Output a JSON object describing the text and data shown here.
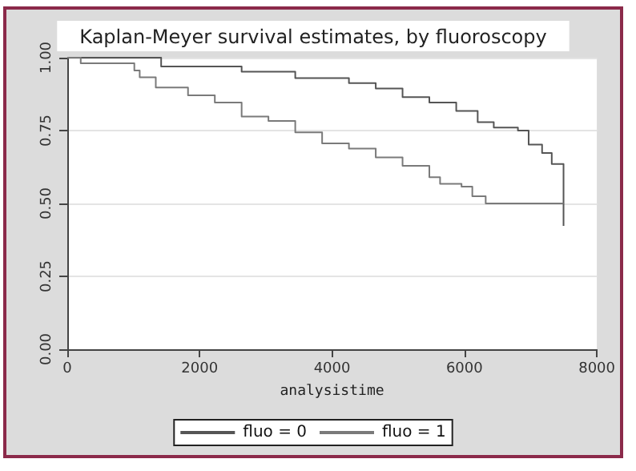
{
  "chart_data": {
    "type": "step",
    "title": "Kaplan-Meyer survival estimates, by fluoroscopy",
    "xlabel": "analysistime",
    "xlim": [
      0,
      8000
    ],
    "xticks": [
      0,
      2000,
      4000,
      6000,
      8000
    ],
    "ylim": [
      0,
      1
    ],
    "yticks": [
      {
        "value": 0,
        "label": "0.00"
      },
      {
        "value": 0.25,
        "label": "0.25"
      },
      {
        "value": 0.5,
        "label": "0.50"
      },
      {
        "value": 0.75,
        "label": "0.75"
      },
      {
        "value": 1,
        "label": "1.00"
      }
    ],
    "grid": "y",
    "legend": "bottom",
    "line_style": "solid",
    "marker": "none",
    "series": [
      {
        "name": "fluo = 0",
        "color": "#555555",
        "x": [
          0,
          1418,
          2634,
          3444,
          4255,
          4660,
          5065,
          5470,
          5876,
          6200,
          6443,
          6808,
          6970,
          7173,
          7319,
          7497,
          7497
        ],
        "values": [
          1,
          0.97,
          0.952,
          0.93,
          0.913,
          0.894,
          0.865,
          0.846,
          0.817,
          0.779,
          0.76,
          0.75,
          0.702,
          0.673,
          0.635,
          0.635,
          0.423
        ]
      },
      {
        "name": "fluo = 1",
        "color": "#7a7a7a",
        "x": [
          0,
          203,
          1013,
          1094,
          1337,
          1824,
          2229,
          2634,
          3039,
          3444,
          3850,
          4255,
          4660,
          5065,
          5470,
          5632,
          5956,
          6119,
          6321,
          7497
        ],
        "values": [
          1,
          0.981,
          0.956,
          0.933,
          0.898,
          0.871,
          0.846,
          0.798,
          0.783,
          0.744,
          0.706,
          0.688,
          0.658,
          0.629,
          0.59,
          0.567,
          0.558,
          0.525,
          0.5,
          0.5
        ]
      }
    ]
  }
}
